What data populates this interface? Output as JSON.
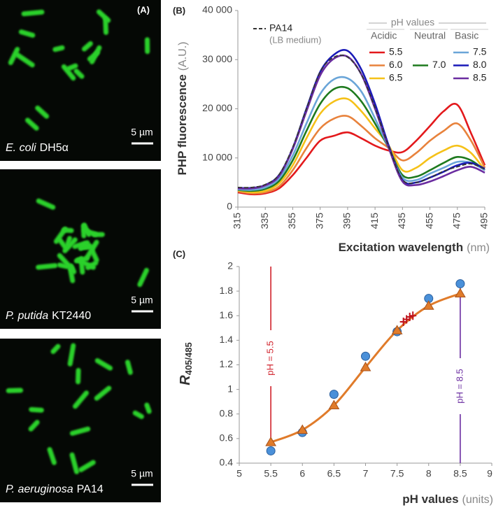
{
  "panel_a": {
    "label": "(A)",
    "images": [
      {
        "species": "E. coli",
        "strain": "DH5α",
        "scale": "5 µm"
      },
      {
        "species": "P. putida",
        "strain": "KT2440",
        "scale": "5 µm"
      },
      {
        "species": "P. aeruginosa",
        "strain": "PA14",
        "scale": "5 µm"
      }
    ]
  },
  "chart_data": [
    {
      "type": "line",
      "label": "(B)",
      "y_label": "PHP fluorescence",
      "y_unit": "(A.U.)",
      "x_label": "Excitation wavelength",
      "x_unit": "(nm)",
      "legend_title": "pH values",
      "x": [
        315,
        325,
        335,
        345,
        355,
        365,
        375,
        385,
        395,
        405,
        415,
        425,
        435,
        445,
        455,
        465,
        475,
        485,
        495
      ],
      "xlim": [
        315,
        495
      ],
      "xticks": [
        315,
        335,
        355,
        375,
        395,
        415,
        435,
        455,
        475,
        495
      ],
      "ylim": [
        0,
        40000
      ],
      "yticks": [
        0,
        {
          "value": 10000,
          "label": "10 000"
        },
        {
          "value": 20000,
          "label": "20 000"
        },
        {
          "value": 30000,
          "label": "30 000"
        },
        {
          "value": 40000,
          "label": "40 000"
        }
      ],
      "series": [
        {
          "name": "5.5",
          "group": "Acidic",
          "color": "#e3191c",
          "values": [
            3000,
            2600,
            2800,
            3800,
            6500,
            10000,
            13500,
            14500,
            15200,
            14000,
            12500,
            11500,
            11200,
            13500,
            16500,
            19500,
            20800,
            15000,
            8500
          ]
        },
        {
          "name": "6.0",
          "color": "#e8823c",
          "values": [
            3200,
            2800,
            3000,
            4200,
            7500,
            12000,
            16000,
            18000,
            18500,
            16500,
            14000,
            12000,
            9500,
            11000,
            13500,
            15500,
            17000,
            13500,
            8000
          ]
        },
        {
          "name": "6.5",
          "color": "#f5c118",
          "values": [
            3400,
            3000,
            3300,
            4800,
            8500,
            14000,
            19000,
            21500,
            22000,
            19500,
            16000,
            12500,
            7500,
            8000,
            10000,
            11500,
            12500,
            11000,
            7500
          ]
        },
        {
          "name": "7.0",
          "group": "Neutral",
          "color": "#1e7a1e",
          "values": [
            3500,
            3300,
            3700,
            5300,
            9500,
            15500,
            21000,
            24000,
            24200,
            21500,
            17000,
            12000,
            6500,
            6200,
            7500,
            9000,
            10200,
            9500,
            7500
          ]
        },
        {
          "name": "7.5",
          "group": "Basic",
          "color": "#6aa5d8",
          "values": [
            3600,
            3500,
            4000,
            5800,
            10500,
            17000,
            23000,
            26000,
            26200,
            23500,
            18000,
            12000,
            6000,
            5500,
            6800,
            8000,
            9200,
            9000,
            7500
          ]
        },
        {
          "name": "8.0",
          "color": "#1a1ab8",
          "values": [
            3900,
            3900,
            4500,
            6500,
            12000,
            20000,
            27500,
            31000,
            31800,
            28000,
            21000,
            12500,
            5500,
            5000,
            6000,
            7200,
            8500,
            9000,
            7800
          ]
        },
        {
          "name": "8.5",
          "color": "#6a2ca0",
          "values": [
            3800,
            3800,
            4400,
            6300,
            11800,
            19500,
            26800,
            30200,
            30600,
            27000,
            20000,
            12000,
            5200,
            4500,
            5200,
            6300,
            7500,
            8200,
            7000
          ]
        },
        {
          "name": "PA14",
          "note": "(LB medium)",
          "color": "#333333",
          "dashed": true,
          "values": [
            4000,
            4000,
            4600,
            6600,
            12200,
            20000,
            27500,
            30500,
            30500,
            27000,
            20200,
            12300,
            5600,
            5000,
            6000,
            7300,
            8200,
            8800,
            7700
          ]
        }
      ]
    },
    {
      "type": "scatter",
      "label": "(C)",
      "y_label": "R",
      "y_label_sub": "405/485",
      "x_label": "pH values",
      "x_unit": "(units)",
      "x": [
        5.5,
        6,
        6.5,
        7,
        7.5,
        8,
        8.5
      ],
      "xlim": [
        5,
        9
      ],
      "xticks": [
        5,
        5.5,
        6,
        6.5,
        7,
        7.5,
        8,
        8.5,
        9
      ],
      "ylim": [
        0.4,
        2
      ],
      "yticks": [
        0.4,
        0.6,
        0.8,
        1,
        1.2,
        1.4,
        1.6,
        1.8,
        2
      ],
      "series": [
        {
          "marker": "circle",
          "color": "#4a90d9",
          "values": [
            0.5,
            0.65,
            0.96,
            1.27,
            1.47,
            1.74,
            1.86
          ]
        },
        {
          "marker": "triangle",
          "color": "#e07b2a",
          "fit": true,
          "values": [
            0.57,
            0.67,
            0.87,
            1.18,
            1.48,
            1.68,
            1.78
          ]
        },
        {
          "marker": "cross",
          "color": "#c0141c",
          "x": [
            7.6,
            7.65,
            7.7,
            7.75
          ],
          "values": [
            1.55,
            1.57,
            1.59,
            1.6
          ]
        }
      ],
      "annotations": [
        {
          "text": "pH = 5.5",
          "x": 5.5,
          "color": "#d0202a"
        },
        {
          "text": "pH = 8.5",
          "x": 8.5,
          "color": "#6a2ca0"
        }
      ]
    }
  ]
}
